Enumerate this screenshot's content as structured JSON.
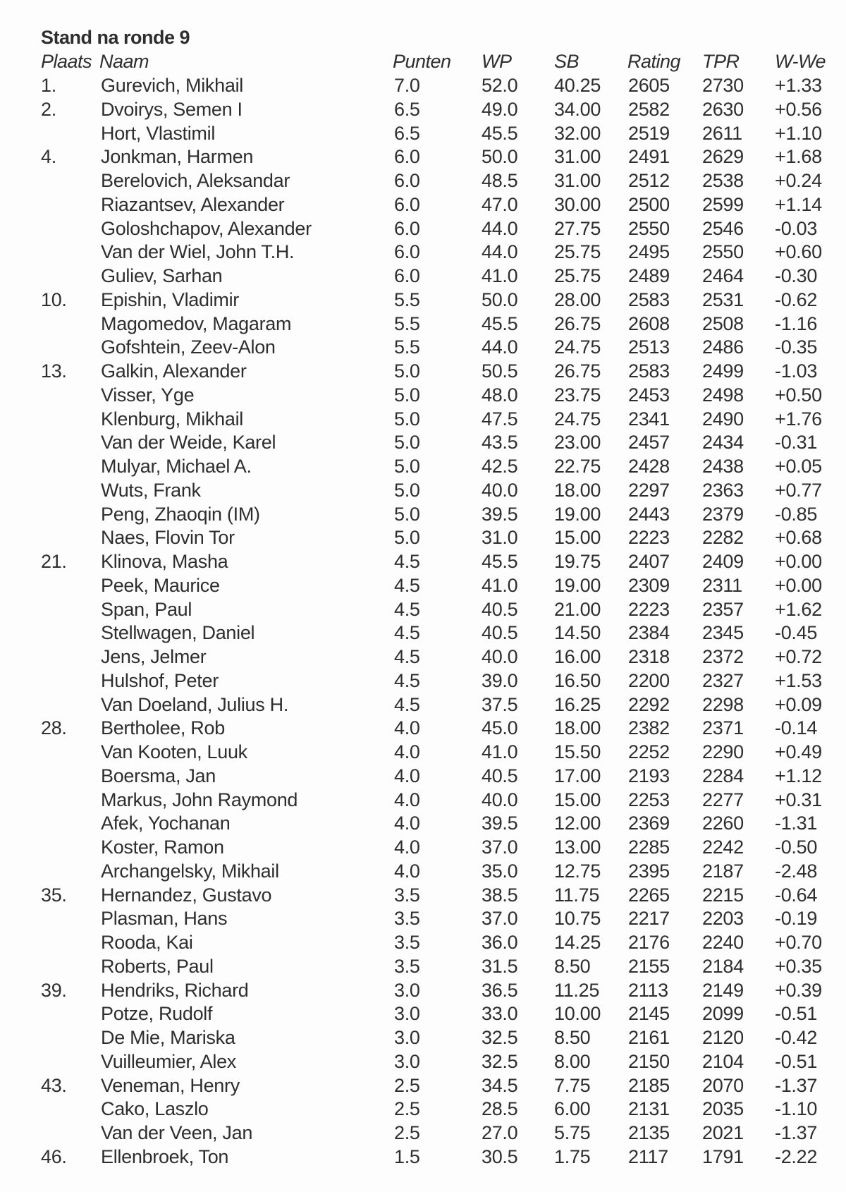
{
  "title": "Stand na ronde 9",
  "headers": {
    "plaats": "Plaats",
    "naam": "Naam",
    "punten": "Punten",
    "wp": "WP",
    "sb": "SB",
    "rating": "Rating",
    "tpr": "TPR",
    "wwe": "W-We"
  },
  "rows": [
    [
      "1.",
      "Gurevich, Mikhail",
      "7.0",
      "52.0",
      "40.25",
      "2605",
      "2730",
      "+1.33"
    ],
    [
      "2.",
      "Dvoirys, Semen I",
      "6.5",
      "49.0",
      "34.00",
      "2582",
      "2630",
      "+0.56"
    ],
    [
      "",
      "Hort, Vlastimil",
      "6.5",
      "45.5",
      "32.00",
      "2519",
      "2611",
      "+1.10"
    ],
    [
      "4.",
      "Jonkman, Harmen",
      "6.0",
      "50.0",
      "31.00",
      "2491",
      "2629",
      "+1.68"
    ],
    [
      "",
      "Berelovich, Aleksandar",
      "6.0",
      "48.5",
      "31.00",
      "2512",
      "2538",
      "+0.24"
    ],
    [
      "",
      "Riazantsev, Alexander",
      "6.0",
      "47.0",
      "30.00",
      "2500",
      "2599",
      "+1.14"
    ],
    [
      "",
      "Goloshchapov, Alexander",
      "6.0",
      "44.0",
      "27.75",
      "2550",
      "2546",
      "-0.03"
    ],
    [
      "",
      "Van der Wiel, John T.H.",
      "6.0",
      "44.0",
      "25.75",
      "2495",
      "2550",
      "+0.60"
    ],
    [
      "",
      "Guliev, Sarhan",
      "6.0",
      "41.0",
      "25.75",
      "2489",
      "2464",
      "-0.30"
    ],
    [
      "10.",
      "Epishin, Vladimir",
      "5.5",
      "50.0",
      "28.00",
      "2583",
      "2531",
      "-0.62"
    ],
    [
      "",
      "Magomedov, Magaram",
      "5.5",
      "45.5",
      "26.75",
      "2608",
      "2508",
      "-1.16"
    ],
    [
      "",
      "Gofshtein, Zeev-Alon",
      "5.5",
      "44.0",
      "24.75",
      "2513",
      "2486",
      "-0.35"
    ],
    [
      "13.",
      "Galkin, Alexander",
      "5.0",
      "50.5",
      "26.75",
      "2583",
      "2499",
      "-1.03"
    ],
    [
      "",
      "Visser, Yge",
      "5.0",
      "48.0",
      "23.75",
      "2453",
      "2498",
      "+0.50"
    ],
    [
      "",
      "Klenburg, Mikhail",
      "5.0",
      "47.5",
      "24.75",
      "2341",
      "2490",
      "+1.76"
    ],
    [
      "",
      "Van der Weide, Karel",
      "5.0",
      "43.5",
      "23.00",
      "2457",
      "2434",
      "-0.31"
    ],
    [
      "",
      "Mulyar, Michael A.",
      "5.0",
      "42.5",
      "22.75",
      "2428",
      "2438",
      "+0.05"
    ],
    [
      "",
      "Wuts, Frank",
      "5.0",
      "40.0",
      "18.00",
      "2297",
      "2363",
      "+0.77"
    ],
    [
      "",
      "Peng, Zhaoqin (IM)",
      "5.0",
      "39.5",
      "19.00",
      "2443",
      "2379",
      "-0.85"
    ],
    [
      "",
      "Naes, Flovin Tor",
      "5.0",
      "31.0",
      "15.00",
      "2223",
      "2282",
      "+0.68"
    ],
    [
      "21.",
      "Klinova, Masha",
      "4.5",
      "45.5",
      "19.75",
      "2407",
      "2409",
      "+0.00"
    ],
    [
      "",
      "Peek, Maurice",
      "4.5",
      "41.0",
      "19.00",
      "2309",
      "2311",
      "+0.00"
    ],
    [
      "",
      "Span, Paul",
      "4.5",
      "40.5",
      "21.00",
      "2223",
      "2357",
      "+1.62"
    ],
    [
      "",
      "Stellwagen, Daniel",
      "4.5",
      "40.5",
      "14.50",
      "2384",
      "2345",
      "-0.45"
    ],
    [
      "",
      "Jens, Jelmer",
      "4.5",
      "40.0",
      "16.00",
      "2318",
      "2372",
      "+0.72"
    ],
    [
      "",
      "Hulshof, Peter",
      "4.5",
      "39.0",
      "16.50",
      "2200",
      "2327",
      "+1.53"
    ],
    [
      "",
      "Van Doeland, Julius H.",
      "4.5",
      "37.5",
      "16.25",
      "2292",
      "2298",
      "+0.09"
    ],
    [
      "28.",
      "Bertholee, Rob",
      "4.0",
      "45.0",
      "18.00",
      "2382",
      "2371",
      "-0.14"
    ],
    [
      "",
      "Van Kooten, Luuk",
      "4.0",
      "41.0",
      "15.50",
      "2252",
      "2290",
      "+0.49"
    ],
    [
      "",
      "Boersma, Jan",
      "4.0",
      "40.5",
      "17.00",
      "2193",
      "2284",
      "+1.12"
    ],
    [
      "",
      "Markus, John Raymond",
      "4.0",
      "40.0",
      "15.00",
      "2253",
      "2277",
      "+0.31"
    ],
    [
      "",
      "Afek, Yochanan",
      "4.0",
      "39.5",
      "12.00",
      "2369",
      "2260",
      "-1.31"
    ],
    [
      "",
      "Koster, Ramon",
      "4.0",
      "37.0",
      "13.00",
      "2285",
      "2242",
      "-0.50"
    ],
    [
      "",
      "Archangelsky, Mikhail",
      "4.0",
      "35.0",
      "12.75",
      "2395",
      "2187",
      "-2.48"
    ],
    [
      "35.",
      "Hernandez, Gustavo",
      "3.5",
      "38.5",
      "11.75",
      "2265",
      "2215",
      "-0.64"
    ],
    [
      "",
      "Plasman, Hans",
      "3.5",
      "37.0",
      "10.75",
      "2217",
      "2203",
      "-0.19"
    ],
    [
      "",
      "Rooda, Kai",
      "3.5",
      "36.0",
      "14.25",
      "2176",
      "2240",
      "+0.70"
    ],
    [
      "",
      "Roberts, Paul",
      "3.5",
      "31.5",
      "8.50",
      "2155",
      "2184",
      "+0.35"
    ],
    [
      "39.",
      "Hendriks, Richard",
      "3.0",
      "36.5",
      "11.25",
      "2113",
      "2149",
      "+0.39"
    ],
    [
      "",
      "Potze, Rudolf",
      "3.0",
      "33.0",
      "10.00",
      "2145",
      "2099",
      "-0.51"
    ],
    [
      "",
      "De Mie, Mariska",
      "3.0",
      "32.5",
      "8.50",
      "2161",
      "2120",
      "-0.42"
    ],
    [
      "",
      "Vuilleumier, Alex",
      "3.0",
      "32.5",
      "8.00",
      "2150",
      "2104",
      "-0.51"
    ],
    [
      "43.",
      "Veneman, Henry",
      "2.5",
      "34.5",
      "7.75",
      "2185",
      "2070",
      "-1.37"
    ],
    [
      "",
      "Cako, Laszlo",
      "2.5",
      "28.5",
      "6.00",
      "2131",
      "2035",
      "-1.10"
    ],
    [
      "",
      "Van der Veen, Jan",
      "2.5",
      "27.0",
      "5.75",
      "2135",
      "2021",
      "-1.37"
    ],
    [
      "46.",
      "Ellenbroek, Ton",
      "1.5",
      "30.5",
      "1.75",
      "2117",
      "1791",
      "-2.22"
    ]
  ]
}
